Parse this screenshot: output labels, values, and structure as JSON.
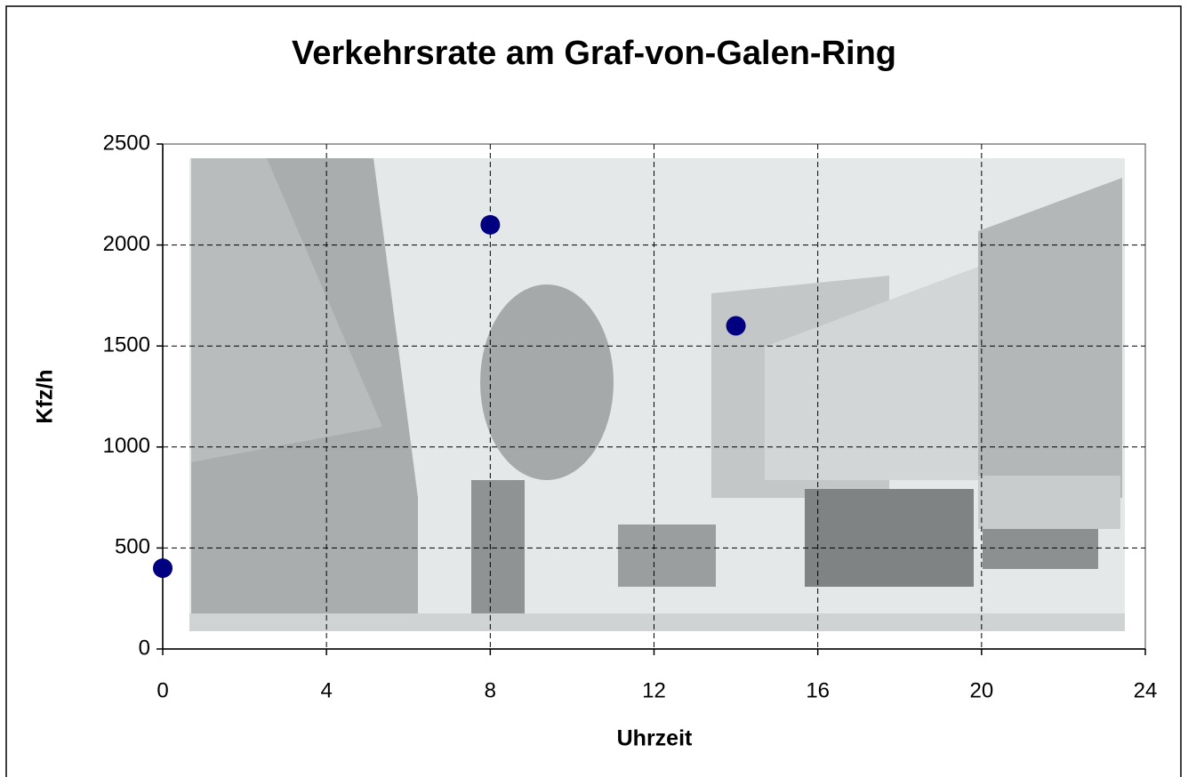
{
  "chart_data": {
    "type": "scatter",
    "title": "Verkehrsrate am Graf-von-Galen-Ring",
    "x_label": "Uhrzeit",
    "y_label": "Kfz/h",
    "series": [
      {
        "name": "Kfz/h",
        "color": "#000080",
        "x": [
          0,
          8,
          14
        ],
        "values": [
          400,
          2100,
          1600
        ]
      }
    ],
    "xlim": [
      0,
      24
    ],
    "xticks": [
      0,
      4,
      8,
      12,
      16,
      20,
      24
    ],
    "ylim": [
      0,
      2500
    ],
    "yticks": [
      0,
      500,
      1000,
      1500,
      2000,
      2500
    ],
    "grid": true
  }
}
